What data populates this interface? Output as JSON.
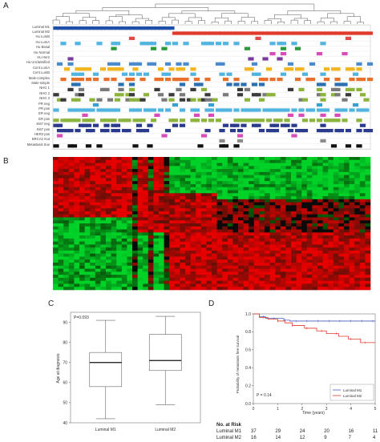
{
  "panels": {
    "a": "A",
    "b": "B",
    "c": "C",
    "d": "D"
  },
  "panel_a": {
    "rows": [
      {
        "label": "Luminal M1",
        "color": "#1f4fa8"
      },
      {
        "label": "Luminal M2",
        "color": "#e03a2a"
      },
      {
        "label": "Hu LumB",
        "color": "#e24a4a"
      },
      {
        "label": "Hu LumA",
        "color": "#4fb4e0"
      },
      {
        "label": "Hu Basal",
        "color": "#2a9a3a"
      },
      {
        "label": "Hu Normal",
        "color": "#d94dbb"
      },
      {
        "label": "Hu Her2",
        "color": "#7a3aa0"
      },
      {
        "label": "Hu Unclassified",
        "color": "#4d8ccc"
      },
      {
        "label": "Cent LumA",
        "color": "#f2b51d"
      },
      {
        "label": "Cent LumB",
        "color": "#4fb4e0"
      },
      {
        "label": "Male-complex",
        "color": "#e8702a"
      },
      {
        "label": "Male-simple",
        "color": "#2a6fb0"
      },
      {
        "label": "NHG 1",
        "color": "#8cb43a"
      },
      {
        "label": "NHG 2",
        "color": "#8c8c8c"
      },
      {
        "label": "NHG 3",
        "color": "#6b6b6b"
      },
      {
        "label": "PR neg",
        "color": "#3aa0d0"
      },
      {
        "label": "PR pos",
        "color": "#4fb4e0"
      },
      {
        "label": "ER neg",
        "color": "#d94dbb"
      },
      {
        "label": "ER pos",
        "color": "#8cb43a"
      },
      {
        "label": "Ki67 neg",
        "color": "#2a3a8c"
      },
      {
        "label": "Ki67 pos",
        "color": "#2a3a8c"
      },
      {
        "label": "HER2 pos",
        "color": "#d94dbb"
      },
      {
        "label": "BRCA2 mut",
        "color": "#8c8c8c"
      },
      {
        "label": "Metastasis true",
        "color": "#111111"
      }
    ]
  },
  "panel_c": {
    "pvalue": "P=0.093",
    "ylabel": "Age at diagnosis",
    "categories": [
      "Luminal M1",
      "Luminal M2"
    ],
    "yticks": [
      "40",
      "50",
      "60",
      "70",
      "80",
      "90"
    ]
  },
  "panel_d": {
    "ylabel": "Probability of metastasis free survival",
    "xlabel": "Time (years)",
    "xticks": [
      "0",
      "1",
      "2",
      "3",
      "4",
      "5"
    ],
    "yticks": [
      "0.0",
      "0.2",
      "0.4",
      "0.6",
      "0.8",
      "1.0"
    ],
    "pvalue": "P = 0.14",
    "legend": [
      {
        "label": "Luminal M1",
        "color": "#4a5fc0"
      },
      {
        "label": "Luminal M2",
        "color": "#e03a2a"
      }
    ],
    "risk_title": "No. at Risk",
    "risk_rows": [
      {
        "label": "Luminal M1",
        "values": [
          "37",
          "29",
          "24",
          "20",
          "16",
          "11"
        ]
      },
      {
        "label": "Luminal M2",
        "values": [
          "16",
          "14",
          "12",
          "9",
          "7",
          "4"
        ]
      }
    ]
  },
  "chart_data": [
    {
      "type": "box",
      "title": "",
      "ylabel": "Age at diagnosis",
      "ylim": [
        40,
        95
      ],
      "categories": [
        "Luminal M1",
        "Luminal M2"
      ],
      "series": [
        {
          "name": "Luminal M1",
          "min": 42,
          "q1": 58,
          "median": 70,
          "q3": 75,
          "max": 91
        },
        {
          "name": "Luminal M2",
          "min": 49,
          "q1": 66,
          "median": 71,
          "q3": 84,
          "max": 93
        }
      ],
      "annotation": "P=0.093"
    },
    {
      "type": "line",
      "title": "",
      "xlabel": "Time (years)",
      "ylabel": "Probability of metastasis free survival",
      "xlim": [
        0,
        5
      ],
      "ylim": [
        0,
        1
      ],
      "series": [
        {
          "name": "Luminal M1",
          "x": [
            0,
            0.25,
            0.5,
            0.75,
            1.25,
            1.5,
            5
          ],
          "y": [
            1.0,
            0.97,
            0.95,
            0.95,
            0.93,
            0.92,
            0.92
          ]
        },
        {
          "name": "Luminal M2",
          "x": [
            0,
            0.25,
            0.6,
            1.0,
            1.3,
            1.6,
            2.1,
            2.6,
            3.0,
            3.5,
            3.9,
            4.4,
            5
          ],
          "y": [
            1.0,
            0.96,
            0.94,
            0.92,
            0.9,
            0.87,
            0.84,
            0.81,
            0.78,
            0.75,
            0.72,
            0.68,
            0.68
          ]
        }
      ],
      "annotation": "P = 0.14"
    }
  ]
}
